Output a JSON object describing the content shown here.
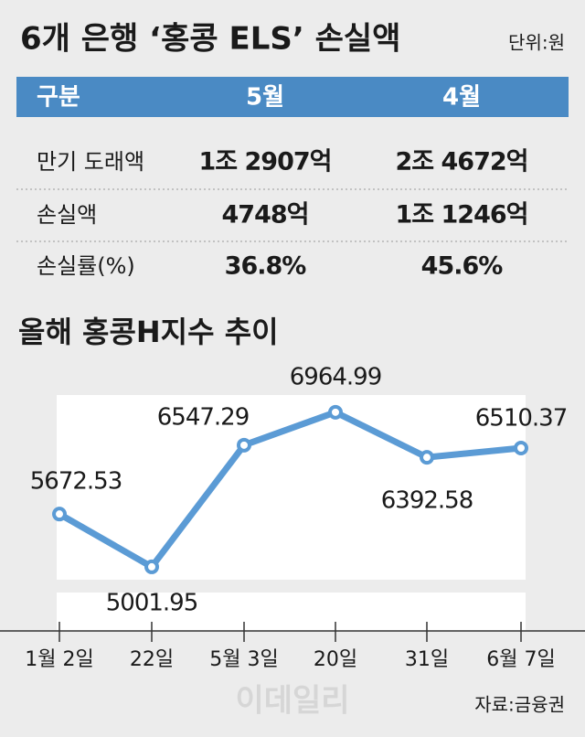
{
  "title": "6개 은행 ‘홍콩 ELS’ 손실액",
  "unit": "단위:원",
  "table": {
    "header": [
      "구분",
      "5월",
      "4월"
    ],
    "rows": [
      [
        "만기 도래액",
        "1조 2907억",
        "2조 4672억"
      ],
      [
        "손실액",
        "4748억",
        "1조 1246억"
      ],
      [
        "손실률(%)",
        "36.8%",
        "45.6%"
      ]
    ]
  },
  "chart_data": {
    "type": "line",
    "title": "올해 홍콩H지수 추이",
    "categories": [
      "1월 2일",
      "22일",
      "5월 3일",
      "20일",
      "31일",
      "6월 7일"
    ],
    "series": [
      {
        "name": "홍콩H지수",
        "color": "#5b9bd5",
        "values": [
          5672.53,
          5001.95,
          6547.29,
          6964.99,
          6392.58,
          6510.37
        ]
      }
    ],
    "ylim": [
      4200,
      7300
    ],
    "grid": false
  },
  "watermark": "이데일리",
  "source": "자료:금융권"
}
